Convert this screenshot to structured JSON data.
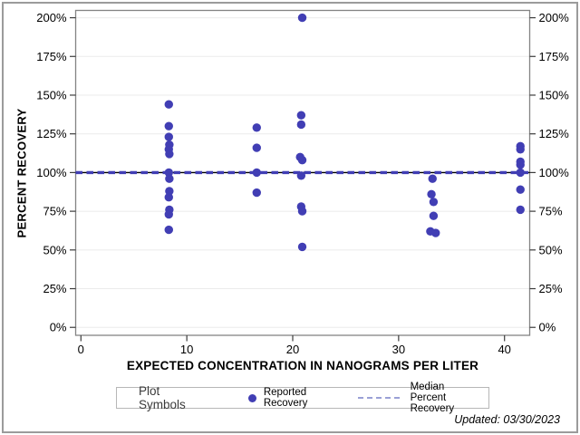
{
  "figure": {
    "y_axis_title": "PERCENT RECOVERY",
    "x_axis_title": "EXPECTED CONCENTRATION IN NANOGRAMS PER LITER",
    "updated_note": "Updated: 03/30/2023"
  },
  "legend": {
    "title": "Plot Symbols",
    "items": [
      {
        "label": "Reported Recovery",
        "marker": "filled-circle"
      },
      {
        "label": "Median Percent Recovery",
        "marker": "dashed-line"
      }
    ]
  },
  "colors": {
    "marker": "#413eb4",
    "median_line_base": "#000000",
    "median_line_dash": "#413eb4",
    "legend_dash": "#9aa0d6",
    "gridline": "#ebebeb",
    "plot_frame": "#848484",
    "tick": "#3c3c3c",
    "text": "#000000",
    "outer_border": "#9b9b9b"
  },
  "chart_data": {
    "type": "scatter",
    "title": "",
    "xlabel": "EXPECTED CONCENTRATION IN NANOGRAMS PER LITER",
    "ylabel": "PERCENT RECOVERY",
    "xlim": [
      -0.5,
      42.4
    ],
    "ylim": [
      -5.3,
      205.3
    ],
    "x_ticks": [
      0,
      10,
      20,
      30,
      40
    ],
    "y_ticks": [
      0,
      25,
      50,
      75,
      100,
      125,
      150,
      175,
      200
    ],
    "y_tick_suffix": "%",
    "grid": "horizontal",
    "legend_position": "bottom",
    "reference_lines": [
      {
        "y": 100,
        "label": "Median Percent Recovery",
        "style": "dashed"
      }
    ],
    "series": [
      {
        "name": "Reported Recovery",
        "marker": "circle",
        "points": [
          [
            8.3,
            144
          ],
          [
            8.3,
            130
          ],
          [
            8.3,
            123
          ],
          [
            8.35,
            118
          ],
          [
            8.3,
            115
          ],
          [
            8.35,
            112
          ],
          [
            8.3,
            100
          ],
          [
            8.35,
            96
          ],
          [
            8.35,
            88
          ],
          [
            8.3,
            84
          ],
          [
            8.35,
            76
          ],
          [
            8.3,
            73
          ],
          [
            8.3,
            63
          ],
          [
            16.6,
            129
          ],
          [
            16.6,
            116
          ],
          [
            16.6,
            100
          ],
          [
            16.6,
            87
          ],
          [
            20.9,
            200
          ],
          [
            20.8,
            137
          ],
          [
            20.8,
            131
          ],
          [
            20.7,
            110
          ],
          [
            20.9,
            108
          ],
          [
            20.8,
            98
          ],
          [
            20.8,
            78
          ],
          [
            20.9,
            75
          ],
          [
            20.9,
            52
          ],
          [
            33.2,
            96
          ],
          [
            33.1,
            86
          ],
          [
            33.3,
            81
          ],
          [
            33.3,
            72
          ],
          [
            33.0,
            62
          ],
          [
            33.5,
            61
          ],
          [
            41.5,
            117
          ],
          [
            41.5,
            115
          ],
          [
            41.5,
            107
          ],
          [
            41.5,
            105
          ],
          [
            41.5,
            100
          ],
          [
            41.5,
            89
          ],
          [
            41.5,
            76
          ]
        ]
      }
    ]
  }
}
